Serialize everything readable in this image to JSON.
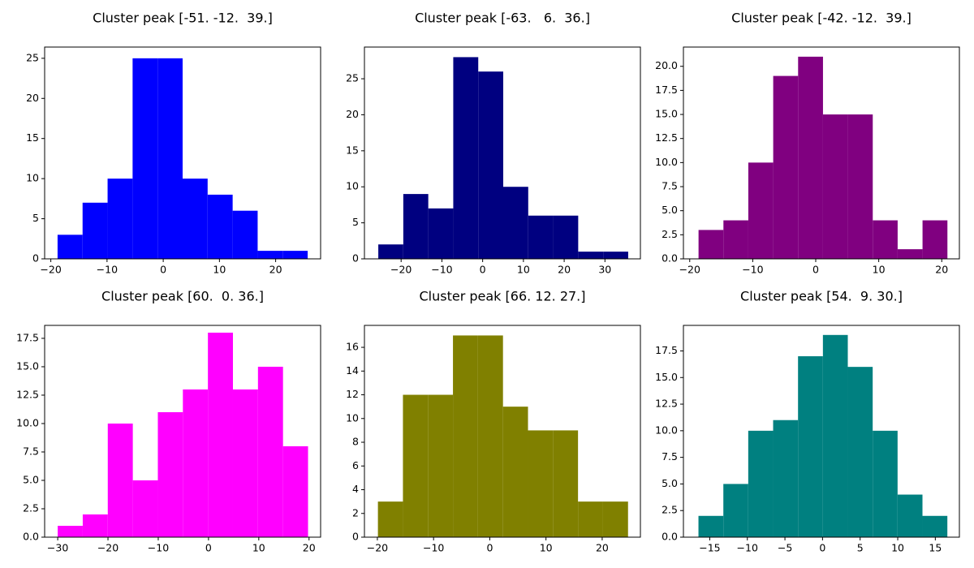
{
  "chart_data": [
    {
      "type": "histogram",
      "title": "Cluster peak [-51. -12.  39.]",
      "color": "#0000ff",
      "bins": [
        -18.8,
        -14.35,
        -9.9,
        -5.45,
        -1.0,
        3.45,
        7.9,
        12.35,
        16.8,
        21.25,
        25.7
      ],
      "counts": [
        3,
        7,
        10,
        25,
        25,
        10,
        8,
        6,
        1,
        1
      ],
      "xlim": [
        -21.1,
        28.0
      ],
      "ylim": [
        0,
        26.4
      ],
      "xticks": [
        {
          "value": -20,
          "label": "−20"
        },
        {
          "value": -10,
          "label": "−10"
        },
        0,
        10,
        20
      ],
      "yticks": [
        0,
        5,
        10,
        15,
        20,
        25
      ]
    },
    {
      "type": "histogram",
      "title": "Cluster peak [-63.   6.  36.]",
      "color": "#000080",
      "bins": [
        -25.6,
        -19.47,
        -13.34,
        -7.21,
        -1.08,
        5.05,
        11.18,
        17.31,
        23.44,
        29.57,
        35.7
      ],
      "counts": [
        2,
        9,
        7,
        28,
        26,
        10,
        6,
        6,
        1,
        1
      ],
      "xlim": [
        -29.0,
        38.7
      ],
      "ylim": [
        0,
        29.4
      ],
      "xticks": [
        {
          "value": -20,
          "label": "−20"
        },
        {
          "value": -10,
          "label": "−10"
        },
        0,
        10,
        20,
        30
      ],
      "yticks": [
        0,
        5,
        10,
        15,
        20,
        25
      ]
    },
    {
      "type": "histogram",
      "title": "Cluster peak [-42. -12.  39.]",
      "color": "#800080",
      "bins": [
        -18.6,
        -14.65,
        -10.7,
        -6.75,
        -2.8,
        1.15,
        5.1,
        9.05,
        13.0,
        16.95,
        20.9
      ],
      "counts": [
        3,
        4,
        10,
        19,
        21,
        15,
        15,
        4,
        1,
        4
      ],
      "xlim": [
        -21.0,
        22.8
      ],
      "ylim": [
        0,
        22.0
      ],
      "xticks": [
        {
          "value": -20,
          "label": "−20"
        },
        {
          "value": -10,
          "label": "−10"
        },
        0,
        10,
        20
      ],
      "yticks": [
        {
          "value": 0,
          "label": "0.0"
        },
        {
          "value": 2.5,
          "label": "2.5"
        },
        {
          "value": 5,
          "label": "5.0"
        },
        {
          "value": 7.5,
          "label": "7.5"
        },
        {
          "value": 10,
          "label": "10.0"
        },
        {
          "value": 12.5,
          "label": "12.5"
        },
        {
          "value": 15,
          "label": "15.0"
        },
        {
          "value": 17.5,
          "label": "17.5"
        },
        {
          "value": 20,
          "label": "20.0"
        }
      ]
    },
    {
      "type": "histogram",
      "title": "Cluster peak [60.  0. 36.]",
      "color": "#ff00ff",
      "bins": [
        -30.0,
        -25.02,
        -20.04,
        -15.06,
        -10.08,
        -5.1,
        -0.12,
        4.86,
        9.84,
        14.82,
        19.8
      ],
      "counts": [
        1,
        2,
        10,
        5,
        11,
        13,
        18,
        13,
        15,
        8
      ],
      "xlim": [
        -32.6,
        22.3
      ],
      "ylim": [
        0,
        18.64
      ],
      "xticks": [
        {
          "value": -30,
          "label": "−30"
        },
        {
          "value": -20,
          "label": "−20"
        },
        {
          "value": -10,
          "label": "−10"
        },
        0,
        10,
        20
      ],
      "yticks": [
        {
          "value": 0,
          "label": "0.0"
        },
        {
          "value": 2.5,
          "label": "2.5"
        },
        {
          "value": 5,
          "label": "5.0"
        },
        {
          "value": 7.5,
          "label": "7.5"
        },
        {
          "value": 10,
          "label": "10.0"
        },
        {
          "value": 12.5,
          "label": "12.5"
        },
        {
          "value": 15,
          "label": "15.0"
        },
        {
          "value": 17.5,
          "label": "17.5"
        }
      ]
    },
    {
      "type": "histogram",
      "title": "Cluster peak [66. 12. 27.]",
      "color": "#808000",
      "bins": [
        -19.9,
        -15.45,
        -11.0,
        -6.55,
        -2.1,
        2.35,
        6.8,
        11.25,
        15.7,
        20.15,
        24.6
      ],
      "counts": [
        3,
        12,
        12,
        17,
        17,
        11,
        9,
        9,
        3,
        3
      ],
      "xlim": [
        -22.3,
        26.8
      ],
      "ylim": [
        0,
        17.85
      ],
      "xticks": [
        {
          "value": -20,
          "label": "−20"
        },
        {
          "value": -10,
          "label": "−10"
        },
        0,
        10,
        20
      ],
      "yticks": [
        0,
        2,
        4,
        6,
        8,
        10,
        12,
        14,
        16
      ]
    },
    {
      "type": "histogram",
      "title": "Cluster peak [54.  9. 30.]",
      "color": "#008080",
      "bins": [
        -16.5,
        -13.19,
        -9.88,
        -6.57,
        -3.26,
        0.05,
        3.36,
        6.67,
        9.98,
        13.29,
        16.6
      ],
      "counts": [
        2,
        5,
        10,
        11,
        17,
        19,
        16,
        10,
        4,
        2
      ],
      "xlim": [
        -18.5,
        18.2
      ],
      "ylim": [
        0,
        19.9
      ],
      "xticks": [
        {
          "value": -15,
          "label": "−15"
        },
        {
          "value": -10,
          "label": "−10"
        },
        {
          "value": -5,
          "label": "−5"
        },
        0,
        5,
        10,
        15
      ],
      "yticks": [
        {
          "value": 0,
          "label": "0.0"
        },
        {
          "value": 2.5,
          "label": "2.5"
        },
        {
          "value": 5,
          "label": "5.0"
        },
        {
          "value": 7.5,
          "label": "7.5"
        },
        {
          "value": 10,
          "label": "10.0"
        },
        {
          "value": 12.5,
          "label": "12.5"
        },
        {
          "value": 15,
          "label": "15.0"
        },
        {
          "value": 17.5,
          "label": "17.5"
        }
      ]
    }
  ]
}
